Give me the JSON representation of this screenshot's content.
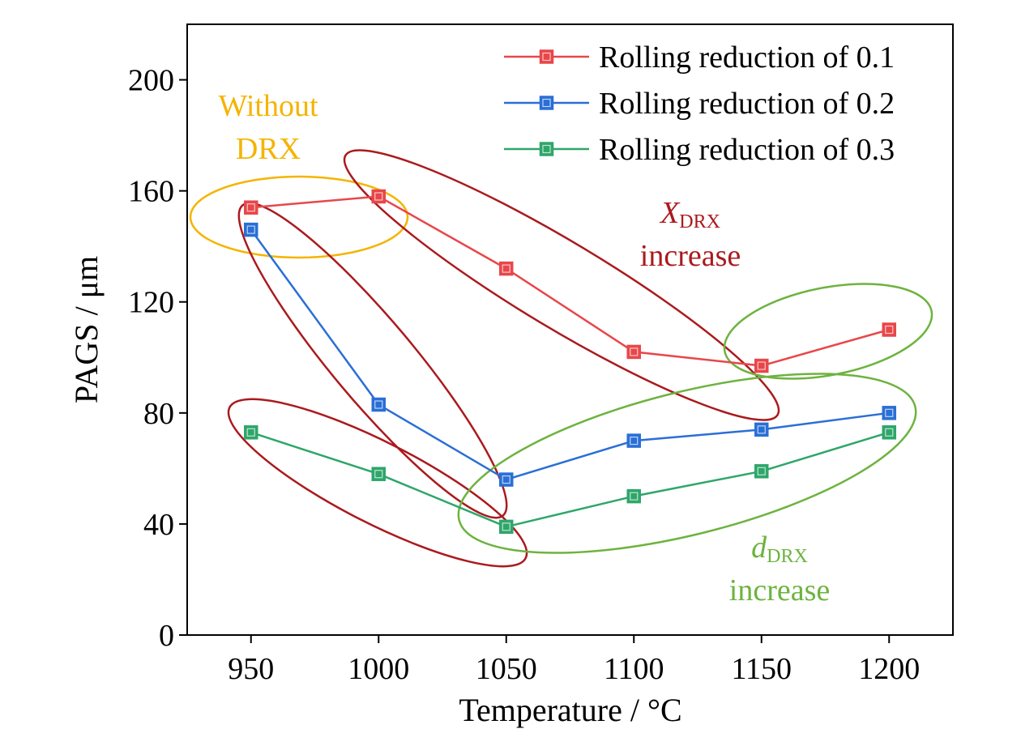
{
  "chart_data": {
    "type": "line",
    "xlabel": "Temperature / °C",
    "ylabel": "PAGS / μm",
    "x": [
      950,
      1000,
      1050,
      1100,
      1150,
      1200
    ],
    "x_ticks": [
      "950",
      "1000",
      "1050",
      "1100",
      "1150",
      "1200"
    ],
    "xlim": [
      925,
      1225
    ],
    "ylim": [
      0,
      220
    ],
    "y_ticks": [
      "0",
      "40",
      "80",
      "120",
      "160",
      "200"
    ],
    "grid": false,
    "legend_position": "top-right",
    "series": [
      {
        "name": "Rolling reduction of 0.1",
        "color": "#e8474a",
        "values": [
          154,
          158,
          132,
          102,
          97,
          110
        ]
      },
      {
        "name": "Rolling reduction of 0.2",
        "color": "#2a6fd6",
        "values": [
          146,
          83,
          56,
          70,
          74,
          80
        ]
      },
      {
        "name": "Rolling reduction of 0.3",
        "color": "#2ea66a",
        "values": [
          73,
          58,
          39,
          50,
          59,
          73
        ]
      }
    ],
    "annotations": {
      "without_drx_line1": "Without",
      "without_drx_line2": "DRX",
      "xdrx_symbol": "X",
      "xdrx_subscript": "DRX",
      "xdrx_word": "increase",
      "ddrx_symbol": "d",
      "ddrx_subscript": "DRX",
      "ddrx_word": "increase"
    },
    "annotation_colors": {
      "without_drx": "#f5b400",
      "xdrx": "#aa1a1e",
      "ddrx": "#6db33f"
    }
  }
}
